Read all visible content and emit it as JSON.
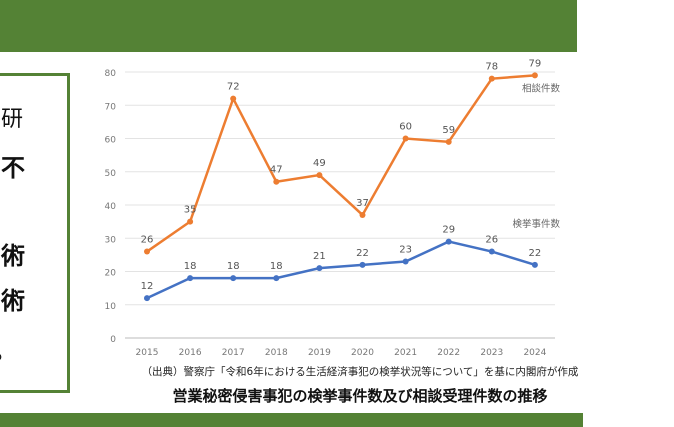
{
  "left_text": [
    "研",
    "不",
    "術",
    "術",
    "。"
  ],
  "source": "（出典）警察庁「令和6年における生活経済事犯の検挙状況等について」を基に内閣府が作成",
  "title": "営業秘密侵害事犯の検挙事件数及び相談受理件数の推移",
  "chart_data": {
    "type": "line",
    "title": "営業秘密侵害事犯の検挙事件数及び相談受理件数の推移",
    "categories": [
      "2015",
      "2016",
      "2017",
      "2018",
      "2019",
      "2020",
      "2021",
      "2022",
      "2023",
      "2024"
    ],
    "ylim": [
      0,
      80
    ],
    "yticks": [
      0,
      10,
      20,
      30,
      40,
      50,
      60,
      70,
      80
    ],
    "grid": true,
    "series": [
      {
        "name": "相談件数",
        "color": "#ED7D31",
        "values": [
          26,
          35,
          72,
          47,
          49,
          37,
          60,
          59,
          78,
          79
        ]
      },
      {
        "name": "検挙事件数",
        "color": "#4472C4",
        "values": [
          12,
          18,
          18,
          18,
          21,
          22,
          23,
          29,
          26,
          22
        ]
      }
    ]
  }
}
